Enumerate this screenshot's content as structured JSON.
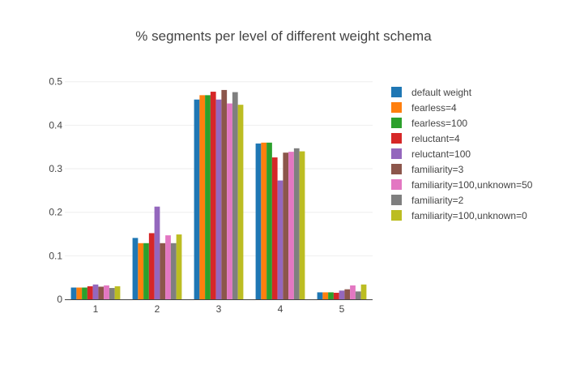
{
  "chart_data": {
    "type": "bar",
    "title": "% segments per level of different weight schema",
    "xlabel": "",
    "ylabel": "",
    "categories": [
      "1",
      "2",
      "3",
      "4",
      "5"
    ],
    "ylim": [
      0,
      0.52
    ],
    "yticks": [
      "0",
      "0.1",
      "0.2",
      "0.3",
      "0.4",
      "0.5"
    ],
    "ytick_values": [
      0,
      0.1,
      0.2,
      0.3,
      0.4,
      0.5
    ],
    "grid": true,
    "legend_position": "right",
    "series": [
      {
        "name": "default weight",
        "color": "#1f77b4",
        "values": [
          0.027,
          0.141,
          0.459,
          0.358,
          0.016
        ]
      },
      {
        "name": "fearless=4",
        "color": "#ff7f0e",
        "values": [
          0.027,
          0.129,
          0.469,
          0.36,
          0.016
        ]
      },
      {
        "name": "fearless=100",
        "color": "#2ca02c",
        "values": [
          0.027,
          0.129,
          0.469,
          0.36,
          0.016
        ]
      },
      {
        "name": "reluctant=4",
        "color": "#d62728",
        "values": [
          0.03,
          0.152,
          0.477,
          0.326,
          0.015
        ]
      },
      {
        "name": "reluctant=100",
        "color": "#9467bd",
        "values": [
          0.034,
          0.213,
          0.459,
          0.273,
          0.02
        ]
      },
      {
        "name": "familiarity=3",
        "color": "#8c564b",
        "values": [
          0.029,
          0.129,
          0.481,
          0.337,
          0.023
        ]
      },
      {
        "name": "familiarity=100,unknown=50",
        "color": "#e377c2",
        "values": [
          0.032,
          0.147,
          0.45,
          0.339,
          0.032
        ]
      },
      {
        "name": "familiarity=2",
        "color": "#7f7f7f",
        "values": [
          0.026,
          0.129,
          0.476,
          0.347,
          0.018
        ]
      },
      {
        "name": "familiarity=100,unknown=0",
        "color": "#bcbd22",
        "values": [
          0.03,
          0.149,
          0.447,
          0.34,
          0.034
        ]
      }
    ]
  }
}
